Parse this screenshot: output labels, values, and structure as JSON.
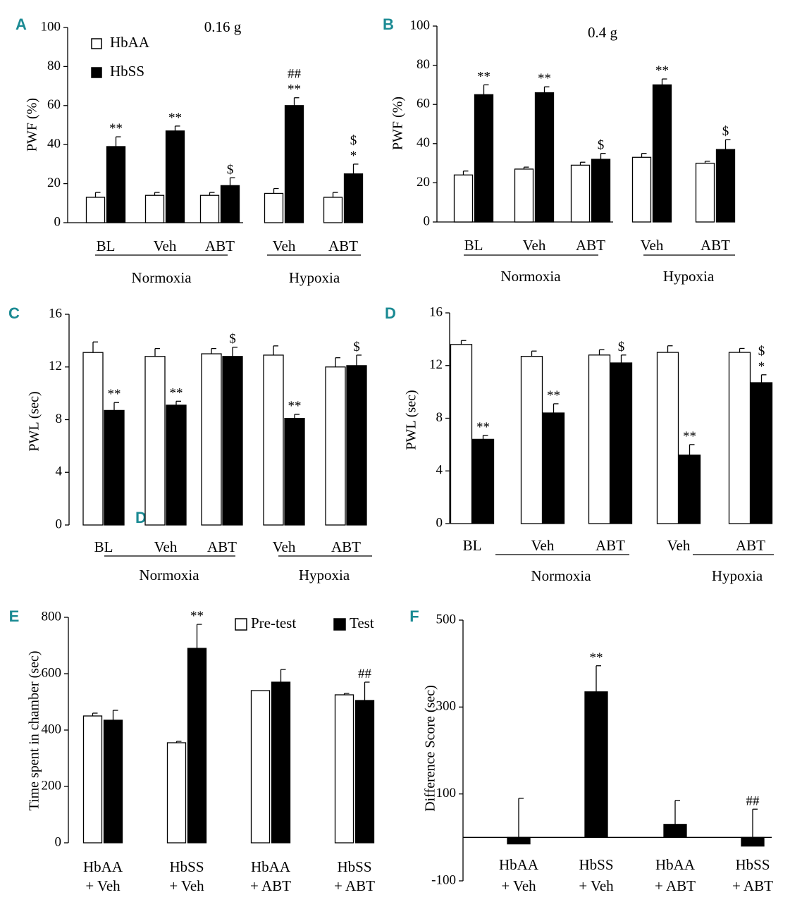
{
  "figure": {
    "stray_label": "D"
  },
  "chart_data": [
    {
      "id": "A",
      "panel_label": "A",
      "type": "bar",
      "title": "0.16 g",
      "ylabel": "PWF (%)",
      "ylim": [
        0,
        100
      ],
      "yticks": [
        0,
        20,
        40,
        60,
        80,
        100
      ],
      "legend": {
        "position": "top-left",
        "entries": [
          "HbAA",
          "HbSS"
        ]
      },
      "categories": [
        "BL",
        "Veh",
        "ABT",
        "Veh",
        "ABT"
      ],
      "groups": [
        {
          "label": "Normoxia",
          "from": 0,
          "to": 2
        },
        {
          "label": "Hypoxia",
          "from": 3,
          "to": 4
        }
      ],
      "series": [
        {
          "name": "HbAA",
          "fill": "#ffffff",
          "values": [
            13,
            14,
            14,
            15,
            13
          ],
          "errors": [
            2.5,
            1.5,
            1.5,
            2.5,
            2.5
          ],
          "marks": [
            "",
            "",
            "",
            "",
            ""
          ]
        },
        {
          "name": "HbSS",
          "fill": "#000000",
          "values": [
            39,
            47,
            19,
            60,
            25
          ],
          "errors": [
            5,
            2.5,
            4,
            4,
            5
          ],
          "marks": [
            "**",
            "**",
            "$",
            "## **",
            "$ *"
          ]
        }
      ]
    },
    {
      "id": "B",
      "panel_label": "B",
      "type": "bar",
      "title": "0.4 g",
      "ylabel": "PWF (%)",
      "ylim": [
        0,
        100
      ],
      "yticks": [
        0,
        20,
        40,
        60,
        80,
        100
      ],
      "categories": [
        "BL",
        "Veh",
        "ABT",
        "Veh",
        "ABT"
      ],
      "groups": [
        {
          "label": "Normoxia",
          "from": 0,
          "to": 2
        },
        {
          "label": "Hypoxia",
          "from": 3,
          "to": 4
        }
      ],
      "series": [
        {
          "name": "HbAA",
          "fill": "#ffffff",
          "values": [
            24,
            27,
            29,
            33,
            30
          ],
          "errors": [
            2,
            1,
            1.5,
            2,
            1
          ],
          "marks": [
            "",
            "",
            "",
            "",
            ""
          ]
        },
        {
          "name": "HbSS",
          "fill": "#000000",
          "values": [
            65,
            66,
            32,
            70,
            37
          ],
          "errors": [
            5,
            3,
            3,
            3,
            5
          ],
          "marks": [
            "**",
            "**",
            "$",
            "**",
            "$"
          ]
        }
      ]
    },
    {
      "id": "C",
      "panel_label": "C",
      "type": "bar",
      "title": "",
      "ylabel": "PWL (sec)",
      "ylim": [
        0,
        16
      ],
      "yticks": [
        0,
        4,
        8,
        12,
        16
      ],
      "categories": [
        "BL",
        "Veh",
        "ABT",
        "Veh",
        "ABT"
      ],
      "groups": [
        {
          "label": "Normoxia",
          "from": 0,
          "to": 2
        },
        {
          "label": "Hypoxia",
          "from": 3,
          "to": 4
        }
      ],
      "series": [
        {
          "name": "HbAA",
          "fill": "#ffffff",
          "values": [
            13.1,
            12.8,
            13.0,
            12.9,
            12.0
          ],
          "errors": [
            0.8,
            0.6,
            0.4,
            0.7,
            0.7
          ],
          "marks": [
            "",
            "",
            "",
            "",
            ""
          ]
        },
        {
          "name": "HbSS",
          "fill": "#000000",
          "values": [
            8.7,
            9.1,
            12.8,
            8.1,
            12.1
          ],
          "errors": [
            0.6,
            0.3,
            0.7,
            0.3,
            0.8
          ],
          "marks": [
            "**",
            "**",
            "$",
            "**",
            "$"
          ]
        }
      ]
    },
    {
      "id": "D",
      "panel_label": "D",
      "type": "bar",
      "title": "",
      "ylabel": "PWL (sec)",
      "ylim": [
        0,
        16
      ],
      "yticks": [
        0,
        4,
        8,
        12,
        16
      ],
      "categories": [
        "BL",
        "Veh",
        "ABT",
        "Veh",
        "ABT"
      ],
      "groups": [
        {
          "label": "Normoxia",
          "from": 0,
          "to": 2
        },
        {
          "label": "Hypoxia",
          "from": 3,
          "to": 4
        }
      ],
      "series": [
        {
          "name": "HbAA",
          "fill": "#ffffff",
          "values": [
            13.6,
            12.7,
            12.8,
            13.0,
            13.0
          ],
          "errors": [
            0.3,
            0.4,
            0.4,
            0.5,
            0.3
          ],
          "marks": [
            "",
            "",
            "",
            "",
            ""
          ]
        },
        {
          "name": "HbSS",
          "fill": "#000000",
          "values": [
            6.4,
            8.4,
            12.2,
            5.2,
            10.7
          ],
          "errors": [
            0.3,
            0.7,
            0.6,
            0.8,
            0.6
          ],
          "marks": [
            "**",
            "**",
            "$",
            "**",
            "$ *"
          ]
        }
      ]
    },
    {
      "id": "E",
      "panel_label": "E",
      "type": "bar",
      "title": "",
      "ylabel": "Time spent in chamber (sec)",
      "ylim": [
        0,
        800
      ],
      "yticks": [
        0,
        200,
        400,
        600,
        800
      ],
      "legend": {
        "position": "top-right",
        "entries": [
          "Pre-test",
          "Test"
        ]
      },
      "categories": [
        "HbAA\n+ Veh",
        "HbSS\n+ Veh",
        "HbAA\n+ ABT",
        "HbSS\n+ ABT"
      ],
      "series": [
        {
          "name": "Pre-test",
          "fill": "#ffffff",
          "values": [
            450,
            355,
            540,
            525
          ],
          "errors": [
            10,
            5,
            0,
            5
          ],
          "marks": [
            "",
            "",
            "",
            ""
          ]
        },
        {
          "name": "Test",
          "fill": "#000000",
          "values": [
            435,
            690,
            570,
            505
          ],
          "errors": [
            35,
            85,
            45,
            65
          ],
          "marks": [
            "",
            "**",
            "",
            "##"
          ]
        }
      ]
    },
    {
      "id": "F",
      "panel_label": "F",
      "type": "bar",
      "title": "",
      "ylabel": "Difference Score (sec)",
      "ylim": [
        -100,
        500
      ],
      "yticks": [
        -100,
        100,
        300,
        500
      ],
      "categories": [
        "HbAA\n+ Veh",
        "HbSS\n+ Veh",
        "HbAA\n+ ABT",
        "HbSS\n+ ABT"
      ],
      "series": [
        {
          "name": "Difference",
          "fill": "#000000",
          "values": [
            -15,
            335,
            30,
            -20
          ],
          "errors": [
            90,
            60,
            55,
            65
          ],
          "marks": [
            "",
            "**",
            "",
            "##"
          ]
        }
      ]
    }
  ]
}
